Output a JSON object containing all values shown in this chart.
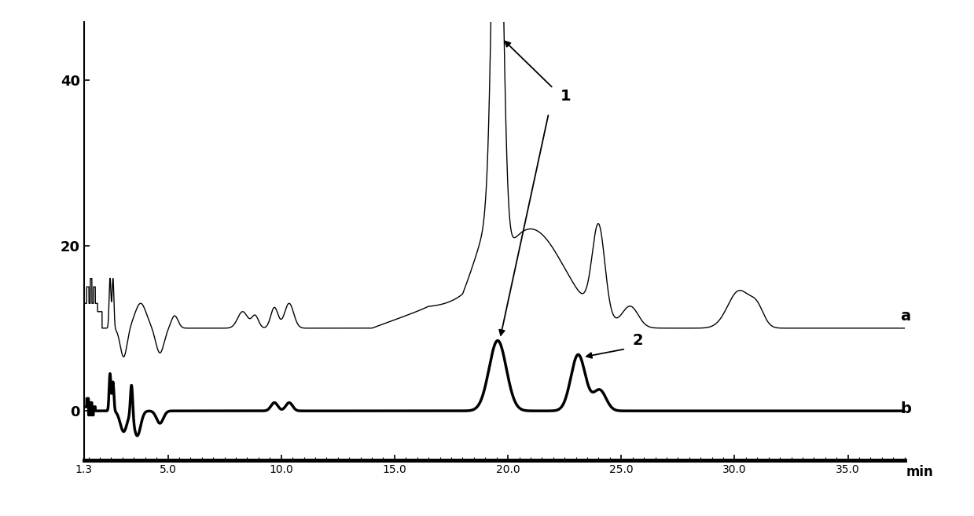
{
  "xlim": [
    1.3,
    37.5
  ],
  "ylim": [
    -6,
    47
  ],
  "yticks": [
    -6,
    0,
    20,
    40
  ],
  "xticks": [
    1.3,
    5.0,
    10.0,
    15.0,
    20.0,
    25.0,
    30.0,
    35.0
  ],
  "xticklabels": [
    "1.3",
    "5.0",
    "10.0",
    "15.0",
    "20.0",
    "25.0",
    "30.0",
    "35.0"
  ],
  "xlabel": "min",
  "label_a": "a",
  "label_b": "b",
  "annotation1": "1",
  "annotation2": "2",
  "bg_color": "#ffffff",
  "line_color": "#000000",
  "linewidth_a": 1.0,
  "linewidth_b": 2.5,
  "baseline_a": 10.0,
  "baseline_b": 0.0
}
